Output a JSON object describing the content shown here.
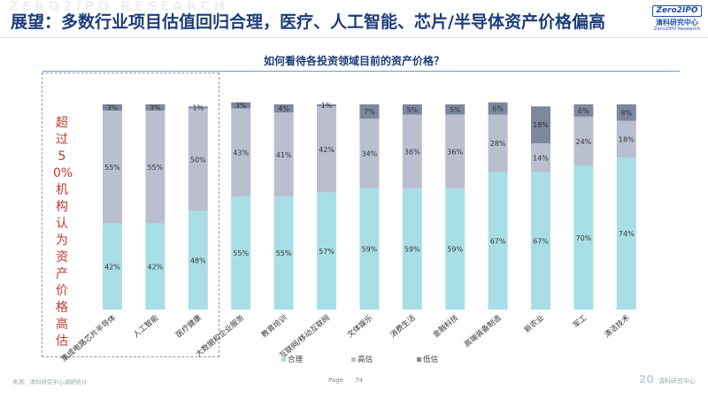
{
  "header": {
    "watermark": "ZERO2IPO RESEARCH",
    "title": "展望：多数行业项目估值回归合理，医疗、人工智能、芯片/半导体资产价格偏高",
    "logo_box": "Zero2IPO",
    "logo_cn": "清科研究中心",
    "logo_en": "Zero2IPO Research"
  },
  "callout": "超过50%机构认为资产价格高估",
  "footer": {
    "source": "来源：清科研究中心调研统计",
    "page_label": "Page",
    "page_number": "74",
    "brand_big": "20",
    "brand_text": "清科研究中心"
  },
  "colors": {
    "reasonable": "#a8dfe6",
    "high": "#b9bfcf",
    "low": "#7d889e"
  },
  "chart_data": {
    "type": "bar",
    "stacked": "percent",
    "title": "如何看待各投资领域目前的资产价格？",
    "categories": [
      "集成电路芯片半导体",
      "人工智能",
      "医疗健康",
      "大数据和企业服务",
      "教育培训",
      "互联网/移动互联网",
      "文体娱乐",
      "消费生活",
      "金融科技",
      "高端装备制造",
      "新农业",
      "军工",
      "清洁技术"
    ],
    "series": [
      {
        "name": "合理",
        "values": [
          42,
          42,
          48,
          55,
          55,
          57,
          59,
          59,
          59,
          67,
          67,
          70,
          74
        ]
      },
      {
        "name": "高估",
        "values": [
          55,
          55,
          50,
          43,
          41,
          42,
          34,
          36,
          36,
          28,
          14,
          24,
          18
        ]
      },
      {
        "name": "低估",
        "values": [
          3,
          3,
          1,
          3,
          4,
          1,
          7,
          5,
          5,
          6,
          18,
          6,
          8
        ]
      }
    ],
    "ylim": [
      0,
      100
    ],
    "grid": false,
    "legend": "bottom"
  }
}
